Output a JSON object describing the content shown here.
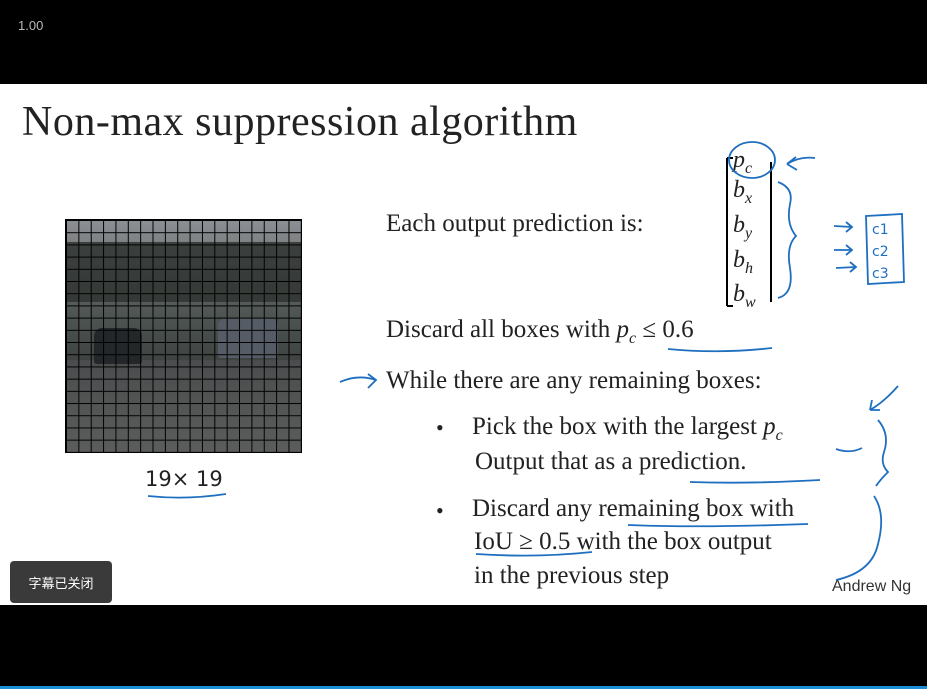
{
  "player": {
    "speed_label": "1.00",
    "subtitle_button": "字幕已关闭"
  },
  "slide": {
    "title": "Non-max suppression algorithm",
    "grid_label": "19× 19",
    "prediction_label": "Each output prediction is:",
    "vector": {
      "pc": "p",
      "pc_sub": "c",
      "bx": "b",
      "bx_sub": "x",
      "by": "b",
      "by_sub": "y",
      "bh": "b",
      "bh_sub": "h",
      "bw": "b",
      "bw_sub": "w"
    },
    "handwritten_classes": [
      "c1",
      "c2",
      "c3"
    ],
    "discard_text": "Discard all boxes with",
    "discard_condition_var": "p",
    "discard_condition_sub": "c",
    "discard_condition_rest": "≤ 0.6",
    "while_text": "While there are any remaining boxes:",
    "bullet1_line1": "Pick the box with the largest",
    "bullet1_var": "p",
    "bullet1_sub": "c",
    "bullet1_line2": "Output that as a prediction.",
    "bullet2_line1": "Discard any remaining box with",
    "bullet2_line2": "IoU ≥ 0.5 with the box output",
    "bullet2_line3": "in the previous step",
    "author": "Andrew Ng"
  },
  "colors": {
    "ink": "#1f6fc0",
    "progress": "#1a8fd8"
  }
}
